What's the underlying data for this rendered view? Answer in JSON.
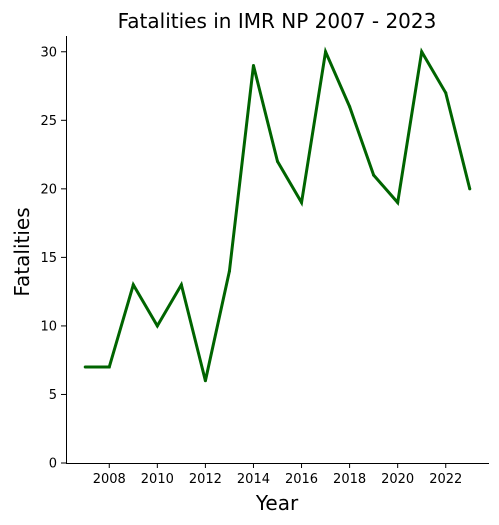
{
  "chart_data": {
    "type": "line",
    "title": "Fatalities in IMR NP 2007 - 2023",
    "xlabel": "Year",
    "ylabel": "Fatalities",
    "x": [
      2007,
      2008,
      2009,
      2010,
      2011,
      2012,
      2013,
      2014,
      2015,
      2016,
      2017,
      2018,
      2019,
      2020,
      2021,
      2022,
      2023
    ],
    "series": [
      {
        "values": [
          7,
          7,
          13,
          10,
          13,
          6,
          14,
          29,
          22,
          19,
          30,
          26,
          21,
          19,
          30,
          27,
          20
        ],
        "color": "#006400"
      }
    ],
    "xticks": [
      "2008",
      "2010",
      "2012",
      "2014",
      "2016",
      "2018",
      "2020",
      "2022"
    ],
    "yticks": [
      "0",
      "5",
      "10",
      "15",
      "20",
      "25",
      "30"
    ],
    "xlim": [
      2006.2,
      2023.8
    ],
    "ylim": [
      0,
      31.15
    ],
    "grid": false,
    "spines": [
      "left",
      "bottom"
    ]
  }
}
